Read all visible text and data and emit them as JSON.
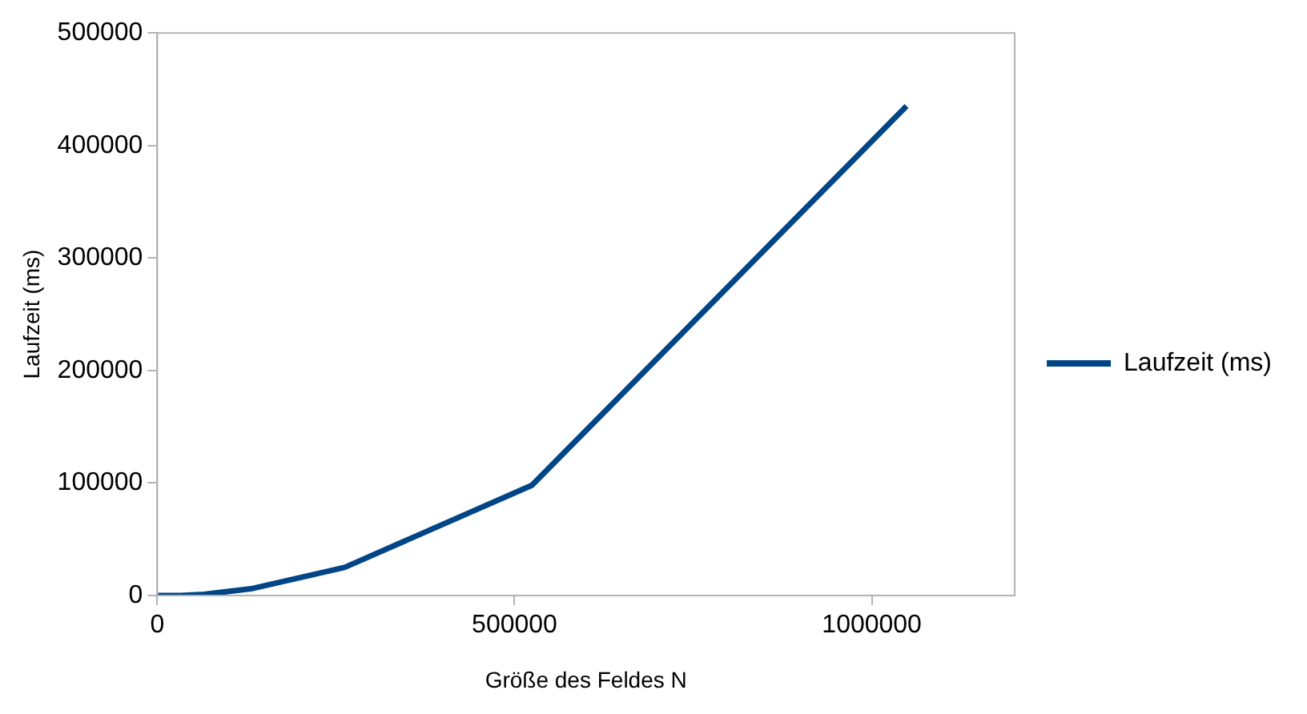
{
  "chart_data": {
    "type": "line",
    "xlabel": "Größe des Feldes N",
    "ylabel": "Laufzeit (ms)",
    "x": [
      1024,
      16384,
      32768,
      65536,
      131072,
      262144,
      524288,
      1048576
    ],
    "series": [
      {
        "name": "Laufzeit (ms)",
        "color": "#004586",
        "values": [
          0,
          0,
          0,
          1000,
          6000,
          25000,
          98000,
          435000
        ]
      }
    ],
    "xlim": [
      0,
      1200000
    ],
    "xticks": [
      0,
      500000,
      1000000
    ],
    "ylim": [
      0,
      500000
    ],
    "yticks": [
      0,
      100000,
      200000,
      300000,
      400000,
      500000
    ],
    "grid": false,
    "legend": "right",
    "marker": "none",
    "line_style": "solid"
  }
}
